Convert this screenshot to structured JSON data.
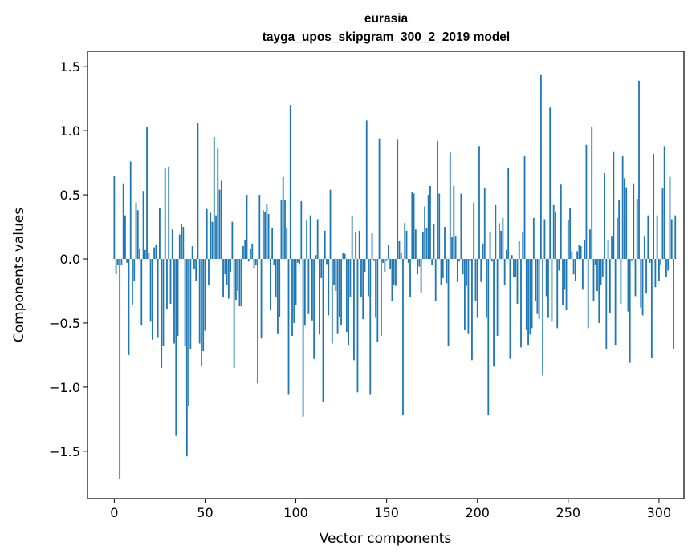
{
  "chart_data": {
    "type": "bar",
    "title": "eurasia",
    "subtitle": "tayga_upos_skipgram_300_2_2019 model",
    "xlabel": "Vector components",
    "ylabel": "Components values",
    "xlim": [
      -14.75,
      313.75
    ],
    "ylim": [
      -1.87,
      1.62
    ],
    "xticks": [
      0,
      50,
      100,
      150,
      200,
      250,
      300
    ],
    "xtick_labels": [
      "0",
      "50",
      "100",
      "150",
      "200",
      "250",
      "300"
    ],
    "yticks": [
      -1.5,
      -1.0,
      -0.5,
      0.0,
      0.5,
      1.0,
      1.5
    ],
    "ytick_labels": [
      "−1.5",
      "−1.0",
      "−0.5",
      "0.0",
      "0.5",
      "1.0",
      "1.5"
    ],
    "bar_color": "#1f77b4",
    "grid": false,
    "legend": "none",
    "values": [
      0.65,
      -0.12,
      -0.05,
      -1.72,
      -0.05,
      0.59,
      0.34,
      -0.03,
      -0.75,
      0.76,
      -0.36,
      -0.17,
      0.44,
      0.38,
      0.08,
      -0.52,
      0.53,
      0.07,
      1.03,
      0.05,
      -0.49,
      -0.63,
      0.09,
      0.11,
      -0.61,
      0.4,
      -0.85,
      -0.68,
      0.71,
      -0.39,
      0.72,
      -0.35,
      0.23,
      -0.66,
      -1.38,
      -0.6,
      0.19,
      0.27,
      0.25,
      -0.68,
      -1.54,
      -1.15,
      -0.7,
      0.1,
      -0.08,
      -0.17,
      1.06,
      -0.66,
      -0.84,
      -0.72,
      -0.56,
      0.39,
      -0.2,
      0.36,
      0.29,
      0.95,
      0.34,
      0.86,
      0.54,
      0.61,
      -0.3,
      -0.12,
      -0.2,
      -0.31,
      -0.1,
      0.29,
      -0.85,
      -0.32,
      -0.25,
      -0.37,
      -0.37,
      0.1,
      0.15,
      0.5,
      -0.02,
      0.08,
      0.12,
      -0.07,
      -0.05,
      -0.97,
      0.5,
      -0.62,
      0.38,
      0.37,
      0.43,
      0.35,
      -0.4,
      0.24,
      -0.05,
      -0.3,
      -0.58,
      -0.45,
      0.46,
      0.64,
      0.46,
      0.24,
      -1.06,
      1.2,
      -0.6,
      -0.5,
      -0.36,
      -0.03,
      -0.04,
      0.45,
      -1.23,
      -0.52,
      0.3,
      -0.43,
      0.34,
      -0.48,
      -0.78,
      0.03,
      0.31,
      -0.59,
      -0.15,
      -1.12,
      0.22,
      -0.04,
      -0.44,
      0.54,
      -0.66,
      -0.2,
      -0.25,
      -0.58,
      -0.45,
      -0.52,
      0.05,
      0.04,
      -0.57,
      -0.67,
      -0.3,
      0.34,
      -0.79,
      0.21,
      -1.04,
      0.22,
      -0.3,
      -0.47,
      -0.1,
      1.08,
      -0.29,
      -1.06,
      0.2,
      -0.01,
      -0.46,
      -0.65,
      0.94,
      -0.6,
      -0.03,
      -0.1,
      -0.01,
      0.11,
      -0.08,
      -0.33,
      -0.2,
      -0.21,
      0.93,
      0.14,
      0.05,
      -1.22,
      0.28,
      0.22,
      -0.03,
      -0.3,
      0.52,
      0.51,
      0.23,
      -0.12,
      -0.06,
      -0.26,
      0.21,
      0.41,
      0.24,
      0.5,
      0.57,
      -0.05,
      0.27,
      -0.33,
      0.92,
      0.51,
      -0.2,
      -0.15,
      0.25,
      -0.19,
      -0.68,
      0.83,
      0.17,
      0.57,
      0.18,
      -0.18,
      -0.02,
      0.51,
      -0.12,
      -0.55,
      -0.21,
      -0.58,
      -0.02,
      -0.79,
      0.44,
      -0.33,
      -0.46,
      0.88,
      -0.18,
      0.12,
      0.55,
      -0.46,
      -1.22,
      0.21,
      -0.02,
      -0.84,
      0.42,
      -0.6,
      0.28,
      0.22,
      0.32,
      -0.2,
      0.07,
      0.71,
      -0.78,
      0.03,
      -0.14,
      -0.14,
      -0.35,
      0.14,
      -0.69,
      0.21,
      0.8,
      -0.55,
      -0.67,
      -0.59,
      -0.54,
      0.32,
      -0.33,
      -0.43,
      -0.47,
      1.44,
      -0.91,
      0.31,
      -0.29,
      -0.46,
      1.18,
      -0.49,
      0.42,
      0.37,
      -0.54,
      -0.09,
      0.58,
      -0.36,
      -0.24,
      -0.4,
      0.3,
      0.4,
      0.06,
      -0.12,
      -0.17,
      0.06,
      0.11,
      0.1,
      -0.24,
      0.15,
      0.89,
      -0.54,
      0.23,
      1.03,
      -0.33,
      -0.05,
      -0.25,
      -0.5,
      -0.2,
      -0.14,
      0.67,
      -0.7,
      0.15,
      -0.42,
      0.18,
      0.84,
      -0.67,
      0.32,
      0.46,
      -0.35,
      0.8,
      0.63,
      0.56,
      -0.41,
      -0.81,
      -0.01,
      0.59,
      -0.29,
      0.47,
      1.39,
      -0.38,
      -0.44,
      0.18,
      -0.27,
      0.34,
      -0.03,
      -0.77,
      0.82,
      -0.22,
      0.34,
      -0.17,
      -0.05,
      0.55,
      0.88,
      -0.14,
      -0.09,
      0.64,
      0.31,
      -0.7,
      0.34
    ]
  }
}
